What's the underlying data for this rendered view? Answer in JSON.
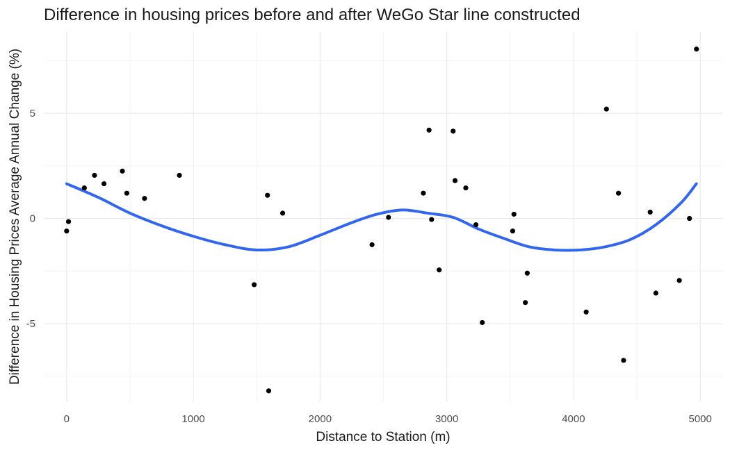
{
  "chart_data": {
    "type": "scatter",
    "title": "Difference in housing prices before and after WeGo Star line constructed",
    "xlabel": "Distance to Station (m)",
    "ylabel": "Difference in Housing Prices Average Annual Change (%)",
    "xlim": [
      -180,
      5180
    ],
    "ylim": [
      -8.7,
      8.9
    ],
    "x_ticks": [
      0,
      1000,
      2000,
      3000,
      4000,
      5000
    ],
    "x_tick_labels": [
      "0",
      "1000",
      "2000",
      "3000",
      "4000",
      "5000"
    ],
    "y_ticks": [
      -5,
      0,
      5
    ],
    "y_tick_labels": [
      "-5",
      "0",
      "5"
    ],
    "grid": true,
    "series": [
      {
        "type": "points",
        "color": "#000000",
        "points": [
          {
            "x": 0,
            "y": -0.6
          },
          {
            "x": 15,
            "y": -0.15
          },
          {
            "x": 140,
            "y": 1.45
          },
          {
            "x": 220,
            "y": 2.05
          },
          {
            "x": 295,
            "y": 1.65
          },
          {
            "x": 440,
            "y": 2.25
          },
          {
            "x": 475,
            "y": 1.2
          },
          {
            "x": 615,
            "y": 0.95
          },
          {
            "x": 890,
            "y": 2.05
          },
          {
            "x": 1480,
            "y": -3.15
          },
          {
            "x": 1585,
            "y": 1.1
          },
          {
            "x": 1595,
            "y": -8.2
          },
          {
            "x": 1705,
            "y": 0.25
          },
          {
            "x": 2410,
            "y": -1.25
          },
          {
            "x": 2540,
            "y": 0.05
          },
          {
            "x": 2815,
            "y": 1.2
          },
          {
            "x": 2860,
            "y": 4.2
          },
          {
            "x": 2880,
            "y": -0.05
          },
          {
            "x": 2940,
            "y": -2.45
          },
          {
            "x": 3050,
            "y": 4.15
          },
          {
            "x": 3065,
            "y": 1.8
          },
          {
            "x": 3150,
            "y": 1.45
          },
          {
            "x": 3230,
            "y": -0.3
          },
          {
            "x": 3280,
            "y": -4.95
          },
          {
            "x": 3520,
            "y": -0.6
          },
          {
            "x": 3530,
            "y": 0.2
          },
          {
            "x": 3620,
            "y": -4.0
          },
          {
            "x": 3635,
            "y": -2.6
          },
          {
            "x": 4100,
            "y": -4.45
          },
          {
            "x": 4260,
            "y": 5.2
          },
          {
            "x": 4355,
            "y": 1.2
          },
          {
            "x": 4395,
            "y": -6.75
          },
          {
            "x": 4605,
            "y": 0.3
          },
          {
            "x": 4650,
            "y": -3.55
          },
          {
            "x": 4835,
            "y": -2.95
          },
          {
            "x": 4915,
            "y": 0.0
          },
          {
            "x": 4970,
            "y": 8.05
          }
        ]
      },
      {
        "type": "smooth_line",
        "color": "#3366ee",
        "points": [
          {
            "x": 0,
            "y": 1.65
          },
          {
            "x": 250,
            "y": 1.0
          },
          {
            "x": 500,
            "y": 0.25
          },
          {
            "x": 750,
            "y": -0.35
          },
          {
            "x": 1000,
            "y": -0.85
          },
          {
            "x": 1250,
            "y": -1.25
          },
          {
            "x": 1500,
            "y": -1.5
          },
          {
            "x": 1750,
            "y": -1.35
          },
          {
            "x": 2000,
            "y": -0.8
          },
          {
            "x": 2250,
            "y": -0.2
          },
          {
            "x": 2450,
            "y": 0.2
          },
          {
            "x": 2650,
            "y": 0.4
          },
          {
            "x": 2850,
            "y": 0.25
          },
          {
            "x": 3050,
            "y": 0.05
          },
          {
            "x": 3250,
            "y": -0.5
          },
          {
            "x": 3450,
            "y": -0.95
          },
          {
            "x": 3650,
            "y": -1.35
          },
          {
            "x": 3850,
            "y": -1.5
          },
          {
            "x": 4050,
            "y": -1.5
          },
          {
            "x": 4250,
            "y": -1.35
          },
          {
            "x": 4450,
            "y": -1.0
          },
          {
            "x": 4650,
            "y": -0.3
          },
          {
            "x": 4850,
            "y": 0.75
          },
          {
            "x": 4970,
            "y": 1.65
          }
        ]
      }
    ]
  }
}
